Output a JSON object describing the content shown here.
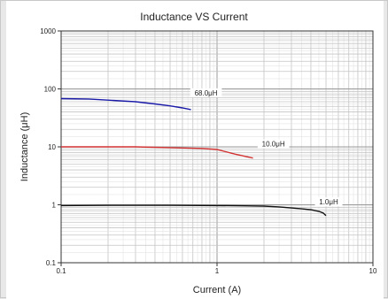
{
  "chart_data": {
    "type": "line",
    "title": "Inductance VS Current",
    "xlabel": "Current (A)",
    "ylabel": "Inductance (μH)",
    "x_scale": "log",
    "y_scale": "log",
    "xlim": [
      0.1,
      10
    ],
    "ylim": [
      0.1,
      1000
    ],
    "x_ticks": [
      {
        "value": 0.1,
        "label": "0.1"
      },
      {
        "value": 1,
        "label": "1"
      },
      {
        "value": 10,
        "label": "10"
      }
    ],
    "y_ticks": [
      {
        "value": 0.1,
        "label": "0.1"
      },
      {
        "value": 1,
        "label": "1"
      },
      {
        "value": 10,
        "label": "10"
      },
      {
        "value": 100,
        "label": "100"
      },
      {
        "value": 1000,
        "label": "1000"
      }
    ],
    "grid": true,
    "series": [
      {
        "name": "68.0μH",
        "color": "#1a1aa8",
        "label_at": {
          "x": 0.85,
          "y": 80
        },
        "points": [
          [
            0.1,
            68
          ],
          [
            0.15,
            67
          ],
          [
            0.2,
            64
          ],
          [
            0.3,
            60
          ],
          [
            0.4,
            55
          ],
          [
            0.5,
            51
          ],
          [
            0.6,
            47
          ],
          [
            0.68,
            44
          ]
        ]
      },
      {
        "name": "10.0μH",
        "color": "#d23232",
        "label_at": {
          "x": 2.3,
          "y": 10.5
        },
        "points": [
          [
            0.1,
            10
          ],
          [
            0.2,
            10
          ],
          [
            0.3,
            10
          ],
          [
            0.5,
            9.7
          ],
          [
            0.8,
            9.4
          ],
          [
            1.0,
            9.0
          ],
          [
            1.3,
            7.5
          ],
          [
            1.7,
            6.4
          ]
        ]
      },
      {
        "name": "1.0μH",
        "color": "#111111",
        "label_at": {
          "x": 5.2,
          "y": 1.05
        },
        "points": [
          [
            0.1,
            0.97
          ],
          [
            0.2,
            0.98
          ],
          [
            0.5,
            0.98
          ],
          [
            1.0,
            0.97
          ],
          [
            1.5,
            0.96
          ],
          [
            2.0,
            0.95
          ],
          [
            2.5,
            0.92
          ],
          [
            3.0,
            0.88
          ],
          [
            3.5,
            0.85
          ],
          [
            4.0,
            0.82
          ],
          [
            4.5,
            0.77
          ],
          [
            4.8,
            0.72
          ],
          [
            5.0,
            0.65
          ]
        ]
      }
    ]
  }
}
